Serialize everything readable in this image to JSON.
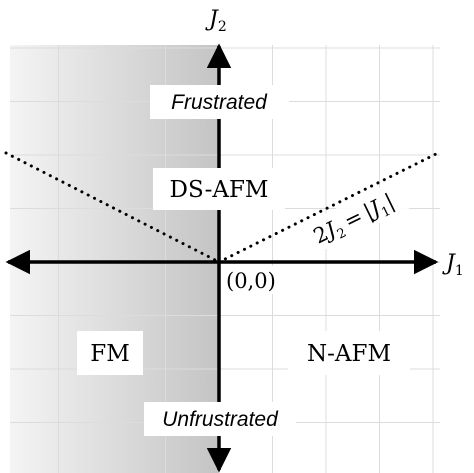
{
  "axes": {
    "x_label": "J",
    "x_label_sub": "1",
    "y_label": "J",
    "y_label_sub": "2",
    "origin_label": "(0,0)",
    "boundary_label": {
      "lhs_coef": "2",
      "lhs_var": "J",
      "lhs_sub": "2",
      "eq": "=",
      "rhs_bar_l": "|",
      "rhs_var": "J",
      "rhs_sub": "1",
      "rhs_bar_r": "|"
    }
  },
  "regions": {
    "ds_afm": "DS-AFM",
    "fm": "FM",
    "n_afm": "N-AFM"
  },
  "annotations": {
    "top": "Frustrated",
    "bottom": "Unfrustrated"
  },
  "colors": {
    "grid": "#dcdcdc",
    "axis": "#000000",
    "shade_dark": "#c4c4c4",
    "shade_light": "#f4f4f4"
  }
}
